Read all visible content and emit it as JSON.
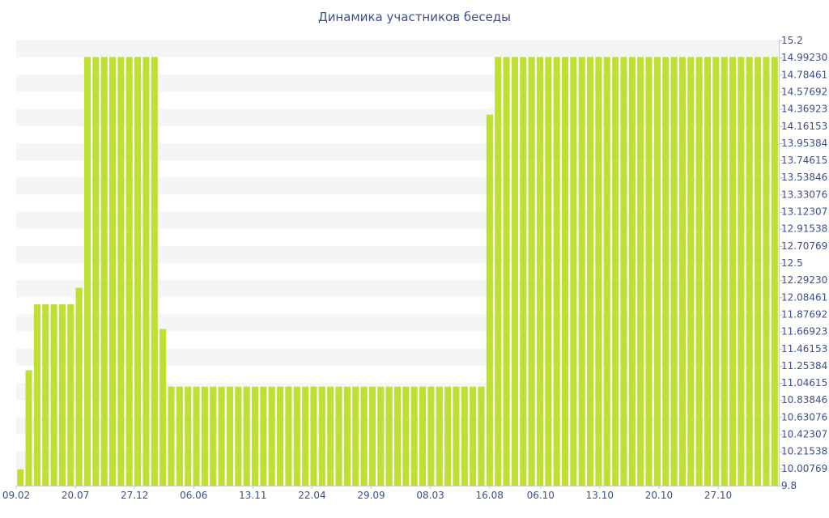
{
  "chart_data": {
    "type": "bar",
    "title": "Динамика участников беседы",
    "xlabel": "",
    "ylabel": "",
    "ylim": [
      9.8,
      15.2
    ],
    "bar_color": "#bde033",
    "band_color": "#f5f5f5",
    "axis_text_color": "#3e4e8c",
    "grid": true,
    "x_tick_labels": [
      "09.02",
      "20.07",
      "27.12",
      "06.06",
      "13.11",
      "22.04",
      "29.09",
      "08.03",
      "16.08",
      "06.10",
      "13.10",
      "20.10",
      "27.10"
    ],
    "y_tick_labels": [
      "15.2",
      "14.99230",
      "14.78461",
      "14.57692",
      "14.36923",
      "14.16153",
      "13.95384",
      "13.74615",
      "13.53846",
      "13.33076",
      "13.12307",
      "12.91538",
      "12.70769",
      "12.5",
      "12.29230",
      "12.08461",
      "11.87692",
      "11.66923",
      "11.46153",
      "11.25384",
      "11.04615",
      "10.83846",
      "10.63076",
      "10.42307",
      "10.21538",
      "10.00769",
      "9.8"
    ],
    "values": [
      10,
      11.2,
      12,
      12,
      12,
      12,
      12,
      12.2,
      15,
      15,
      15,
      15,
      15,
      15,
      15,
      15,
      15,
      11.7,
      11,
      11,
      11,
      11,
      11,
      11,
      11,
      11,
      11,
      11,
      11,
      11,
      11,
      11,
      11,
      11,
      11,
      11,
      11,
      11,
      11,
      11,
      11,
      11,
      11,
      11,
      11,
      11,
      11,
      11,
      11,
      11,
      11,
      11,
      11,
      11,
      11,
      11,
      14.3,
      15,
      15,
      15,
      15,
      15,
      15,
      15,
      15,
      15,
      15,
      15,
      15,
      15,
      15,
      15,
      15,
      15,
      15,
      15,
      15,
      15,
      15,
      15,
      15,
      15,
      15,
      15,
      15,
      15,
      15,
      15,
      15,
      15,
      15
    ]
  }
}
